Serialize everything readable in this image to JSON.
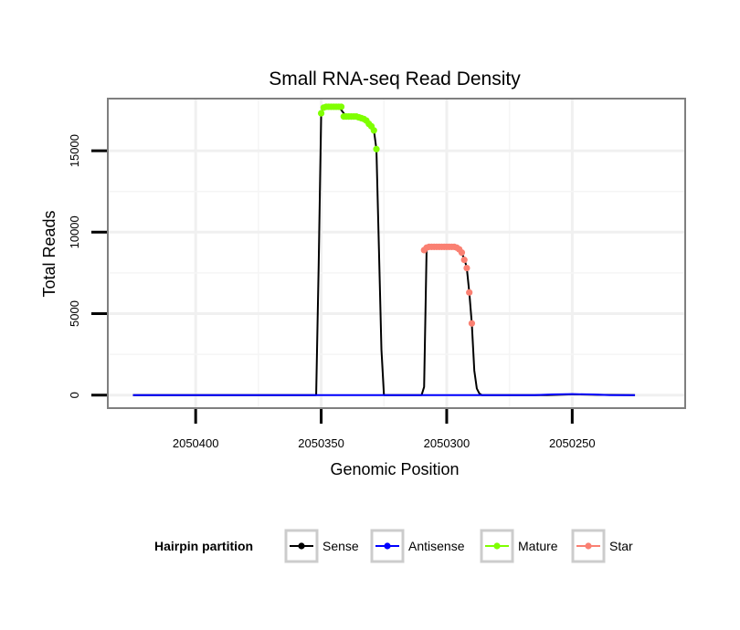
{
  "chart_data": {
    "type": "line",
    "title": "Small RNA-seq Read Density",
    "xlabel": "Genomic Position",
    "ylabel": "Total Reads",
    "x_reversed": true,
    "xlim": [
      2050435,
      2050205
    ],
    "ylim": [
      -800,
      18200
    ],
    "x_ticks": [
      2050400,
      2050350,
      2050300,
      2050250
    ],
    "x_tick_labels": [
      "2050400",
      "2050350",
      "2050300",
      "2050250"
    ],
    "y_ticks": [
      0,
      5000,
      10000,
      15000
    ],
    "y_tick_labels": [
      "0",
      "5000",
      "10000",
      "15000"
    ],
    "grid": true,
    "legend": {
      "title": "Hairpin partition",
      "position": "bottom",
      "entries": [
        {
          "name": "Sense",
          "color": "#000000"
        },
        {
          "name": "Antisense",
          "color": "#0000ff"
        },
        {
          "name": "Mature",
          "color": "#7fff00"
        },
        {
          "name": "Star",
          "color": "#fa8072"
        }
      ]
    },
    "series": [
      {
        "name": "Sense",
        "color": "#000000",
        "x": [
          2050425,
          2050352,
          2050351,
          2050350,
          2050349,
          2050346,
          2050343,
          2050340,
          2050337,
          2050334,
          2050331,
          2050329,
          2050328,
          2050327,
          2050326,
          2050325,
          2050310,
          2050309,
          2050308,
          2050307,
          2050304,
          2050301,
          2050298,
          2050295,
          2050293,
          2050292,
          2050291,
          2050290,
          2050289,
          2050288,
          2050287,
          2050286,
          2050285,
          2050260,
          2050250,
          2050240,
          2050225
        ],
        "y": [
          0,
          0,
          8000,
          17300,
          17700,
          17700,
          17700,
          17100,
          17100,
          16950,
          16650,
          16250,
          15100,
          9000,
          2800,
          0,
          0,
          500,
          9000,
          9100,
          9100,
          9100,
          9100,
          8950,
          8400,
          7800,
          6300,
          4400,
          1500,
          400,
          100,
          0,
          0,
          0,
          50,
          20,
          0
        ]
      },
      {
        "name": "Antisense",
        "color": "#0000ff",
        "x": [
          2050425,
          2050265,
          2050258,
          2050250,
          2050242,
          2050235,
          2050225
        ],
        "y": [
          0,
          0,
          40,
          60,
          40,
          0,
          0
        ]
      },
      {
        "name": "Mature",
        "color": "#7fff00",
        "x": [
          2050350,
          2050349,
          2050348,
          2050347,
          2050346,
          2050345,
          2050344,
          2050343,
          2050342,
          2050341,
          2050340,
          2050339,
          2050338,
          2050337,
          2050336,
          2050335,
          2050334,
          2050333,
          2050332,
          2050331,
          2050330,
          2050329,
          2050328
        ],
        "y": [
          17300,
          17650,
          17700,
          17700,
          17700,
          17700,
          17700,
          17700,
          17700,
          17100,
          17100,
          17100,
          17100,
          17100,
          17100,
          17050,
          17000,
          16950,
          16850,
          16650,
          16500,
          16250,
          15100
        ]
      },
      {
        "name": "Star",
        "color": "#fa8072",
        "x": [
          2050309,
          2050308,
          2050307,
          2050306,
          2050305,
          2050304,
          2050303,
          2050302,
          2050301,
          2050300,
          2050299,
          2050298,
          2050297,
          2050296,
          2050295,
          2050294,
          2050293,
          2050292,
          2050291,
          2050290
        ],
        "y": [
          8900,
          9050,
          9100,
          9100,
          9100,
          9100,
          9100,
          9100,
          9100,
          9100,
          9100,
          9100,
          9100,
          9050,
          8950,
          8750,
          8300,
          7800,
          6300,
          4400
        ]
      }
    ]
  }
}
